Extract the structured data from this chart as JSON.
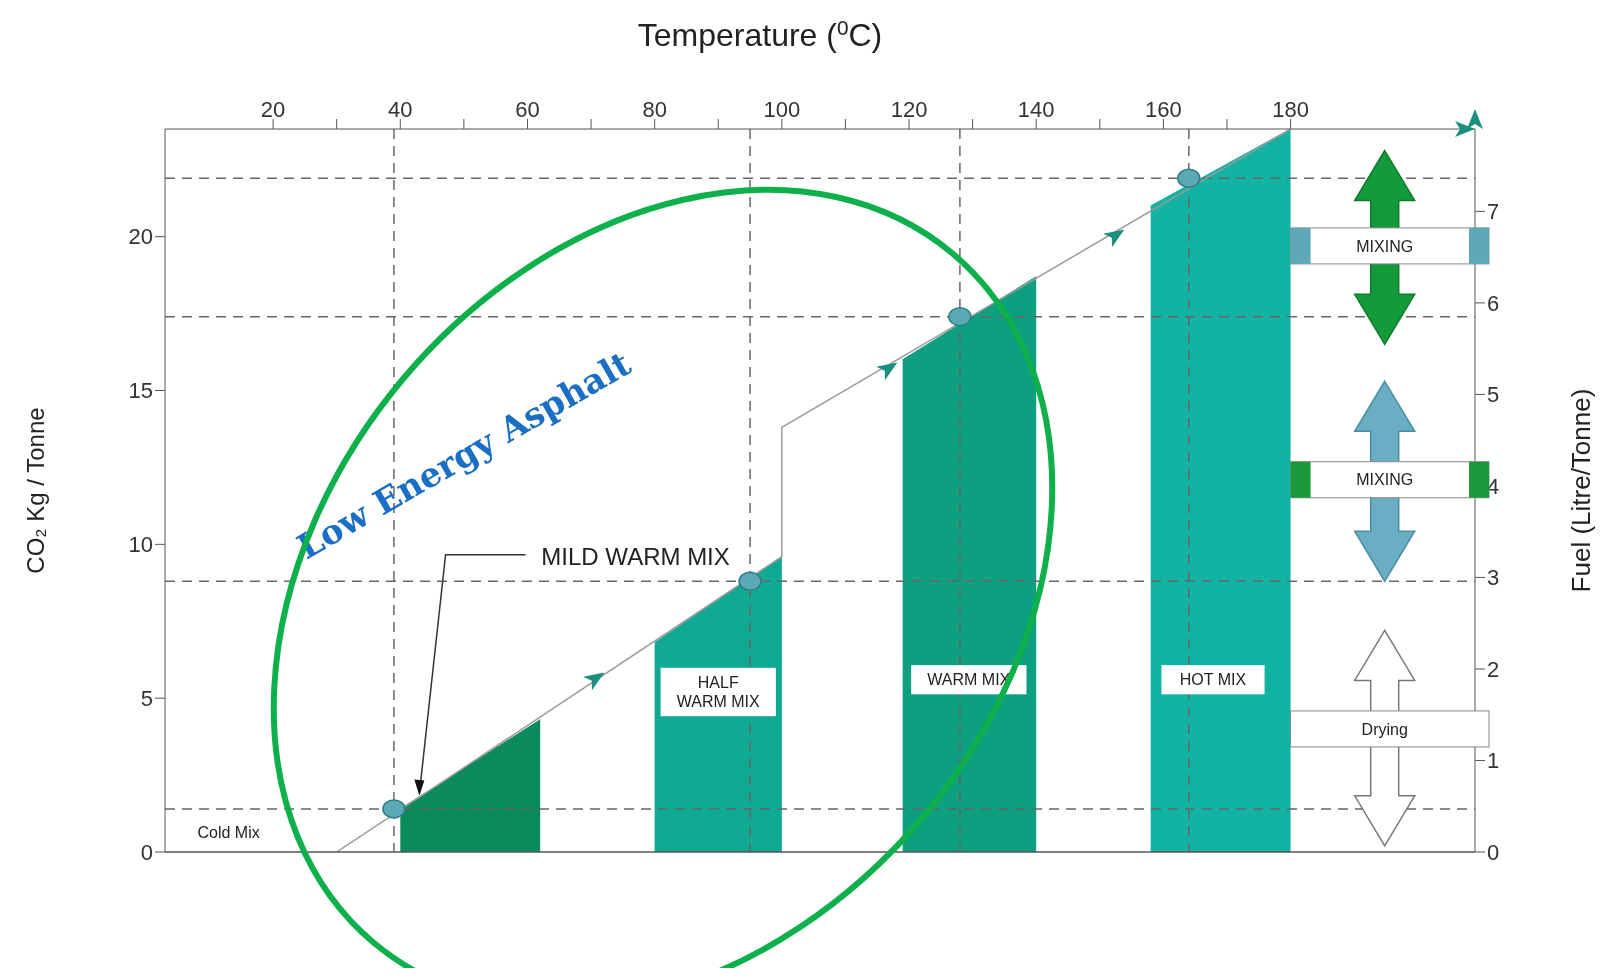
{
  "chart_data": {
    "type": "area",
    "xlabel": "Temperature ($^{0}$C)",
    "ylabel": "CO₂ Kg / Tonne",
    "y2label": "Fuel (Litre/Tonne)",
    "xlim": [
      3,
      209
    ],
    "xticks": [
      20,
      {
        "value": 30,
        "label": null
      },
      40,
      {
        "value": 50,
        "label": null
      },
      60,
      {
        "value": 70,
        "label": null
      },
      80,
      {
        "value": 90,
        "label": null
      },
      100,
      {
        "value": 110,
        "label": null
      },
      120,
      {
        "value": 130,
        "label": null
      },
      140,
      {
        "value": 150,
        "label": null
      },
      160,
      {
        "value": 170,
        "label": null
      },
      180
    ],
    "ylim": [
      0,
      23.5
    ],
    "yticks": [
      0,
      5,
      10,
      15,
      20
    ],
    "y2lim": [
      0,
      7.9
    ],
    "y2ticks": [
      0,
      1,
      2,
      3,
      4,
      5,
      6,
      7
    ],
    "grid": false,
    "series": [
      {
        "color": "#0b8a5c",
        "x": [
          40,
          62
        ],
        "values": [
          1.4,
          4.3
        ]
      },
      {
        "color": "#10a994",
        "x": [
          80,
          100
        ],
        "values": [
          6.8,
          9.6
        ]
      },
      {
        "color": "#0e9e80",
        "x": [
          119,
          140
        ],
        "values": [
          16,
          18.7
        ]
      },
      {
        "color": "#13b3a4",
        "x": [
          158,
          180
        ],
        "values": [
          21,
          23.5
        ]
      },
      {
        "type": "line",
        "color": "#9a9a9a",
        "marker": "none",
        "x": [
          30,
          100,
          100,
          180
        ],
        "values": [
          0,
          9.6,
          13.8,
          23.5
        ]
      },
      {
        "type": "scatter",
        "color": "#5aa9b5",
        "marker": "circle",
        "x": [
          39,
          95,
          128,
          164
        ],
        "values": [
          1.4,
          8.8,
          17.4,
          21.9
        ]
      }
    ],
    "ref_lines": [
      {
        "axis": "x",
        "value": 39,
        "line_style": "dashed",
        "color": "#666666"
      },
      {
        "axis": "x",
        "value": 95,
        "line_style": "dashed",
        "color": "#666666"
      },
      {
        "axis": "x",
        "value": 128,
        "line_style": "dashed",
        "color": "#666666"
      },
      {
        "axis": "x",
        "value": 164,
        "line_style": "dashed",
        "color": "#666666"
      },
      {
        "axis": "y",
        "value": 1.4,
        "line_style": "dashed",
        "color": "#666666"
      },
      {
        "axis": "y",
        "value": 8.8,
        "line_style": "dashed",
        "color": "#666666"
      },
      {
        "axis": "y",
        "value": 17.4,
        "line_style": "dashed",
        "color": "#666666"
      },
      {
        "axis": "y",
        "value": 21.9,
        "line_style": "dashed",
        "color": "#666666"
      }
    ],
    "annotations": [
      "Low Energy Asphalt",
      {
        "text": "MILD WARM MIX",
        "x": 43,
        "y": 1.9
      },
      "Cold Mix",
      "HALF\nWARM MIX",
      "WARM MIX",
      "HOT MIX",
      "MIXING",
      "MIXING",
      "Drying"
    ]
  }
}
